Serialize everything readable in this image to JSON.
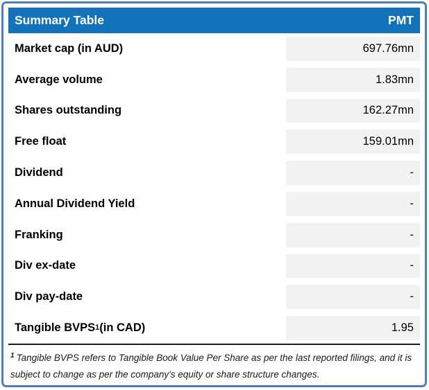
{
  "table": {
    "header": {
      "title": "Summary Table",
      "ticker": "PMT"
    },
    "rows": [
      {
        "label": "Market cap (in AUD)",
        "sup": "",
        "label_suffix": "",
        "value": "697.76mn"
      },
      {
        "label": "Average volume",
        "sup": "",
        "label_suffix": "",
        "value": "1.83mn"
      },
      {
        "label": "Shares outstanding",
        "sup": "",
        "label_suffix": "",
        "value": "162.27mn"
      },
      {
        "label": "Free float",
        "sup": "",
        "label_suffix": "",
        "value": "159.01mn"
      },
      {
        "label": "Dividend",
        "sup": "",
        "label_suffix": "",
        "value": "-"
      },
      {
        "label": "Annual Dividend Yield",
        "sup": "",
        "label_suffix": "",
        "value": "-"
      },
      {
        "label": "Franking",
        "sup": "",
        "label_suffix": "",
        "value": "-"
      },
      {
        "label": "Div ex-date",
        "sup": "",
        "label_suffix": "",
        "value": "-"
      },
      {
        "label": "Div pay-date",
        "sup": "",
        "label_suffix": "",
        "value": "-"
      },
      {
        "label": "Tangible BVPS",
        "sup": "1",
        "label_suffix": " (in CAD)",
        "value": "1.95"
      }
    ],
    "footnote": {
      "marker": "1",
      "text": "Tangible BVPS refers to Tangible Book Value Per Share as per the last reported filings, and it is subject to change as per the company's equity or share structure changes."
    }
  },
  "colors": {
    "header_bg": "#1272BA",
    "frame_border": "#4B7EBB",
    "value_bg": "#F2F2F2",
    "text": "#000000",
    "footnote_text": "#1A1A1A",
    "separator": "#1A1A1A"
  }
}
